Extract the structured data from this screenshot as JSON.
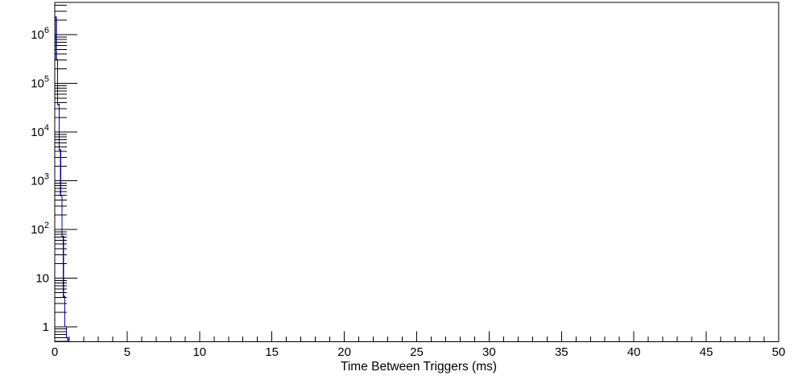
{
  "chart_data": {
    "type": "bar",
    "subtype": "step-histogram-log-y",
    "title": "",
    "xlabel": "Time Between Triggers (ms)",
    "ylabel": "",
    "x_range": [
      0,
      50
    ],
    "y_scale": "log",
    "y_range": [
      0.494,
      4600000
    ],
    "grid": false,
    "legend": null,
    "x_major_tick_step": 5,
    "x_minor_tick_step": 1,
    "x_ticks": [
      {
        "value": 0,
        "label": "0"
      },
      {
        "value": 5,
        "label": "5"
      },
      {
        "value": 10,
        "label": "10"
      },
      {
        "value": 15,
        "label": "15"
      },
      {
        "value": 20,
        "label": "20"
      },
      {
        "value": 25,
        "label": "25"
      },
      {
        "value": 30,
        "label": "30"
      },
      {
        "value": 35,
        "label": "35"
      },
      {
        "value": 40,
        "label": "40"
      },
      {
        "value": 45,
        "label": "45"
      },
      {
        "value": 50,
        "label": "50"
      }
    ],
    "y_ticks": [
      {
        "value": 1,
        "label": "1",
        "exponent": ""
      },
      {
        "value": 10,
        "label": "10",
        "exponent": ""
      },
      {
        "value": 100,
        "label": "10",
        "exponent": "2"
      },
      {
        "value": 1000,
        "label": "10",
        "exponent": "3"
      },
      {
        "value": 10000,
        "label": "10",
        "exponent": "4"
      },
      {
        "value": 100000,
        "label": "10",
        "exponent": "5"
      },
      {
        "value": 1000000,
        "label": "10",
        "exponent": "6"
      }
    ],
    "bins": {
      "start": 0,
      "width": 0.1,
      "values": [
        2300000,
        310000,
        37000,
        4300,
        500,
        72,
        4.2,
        1.0,
        0.6
      ]
    },
    "colors": {
      "histogram_line": "#0000b4",
      "axis": "#000000",
      "background": "#ffffff"
    }
  }
}
